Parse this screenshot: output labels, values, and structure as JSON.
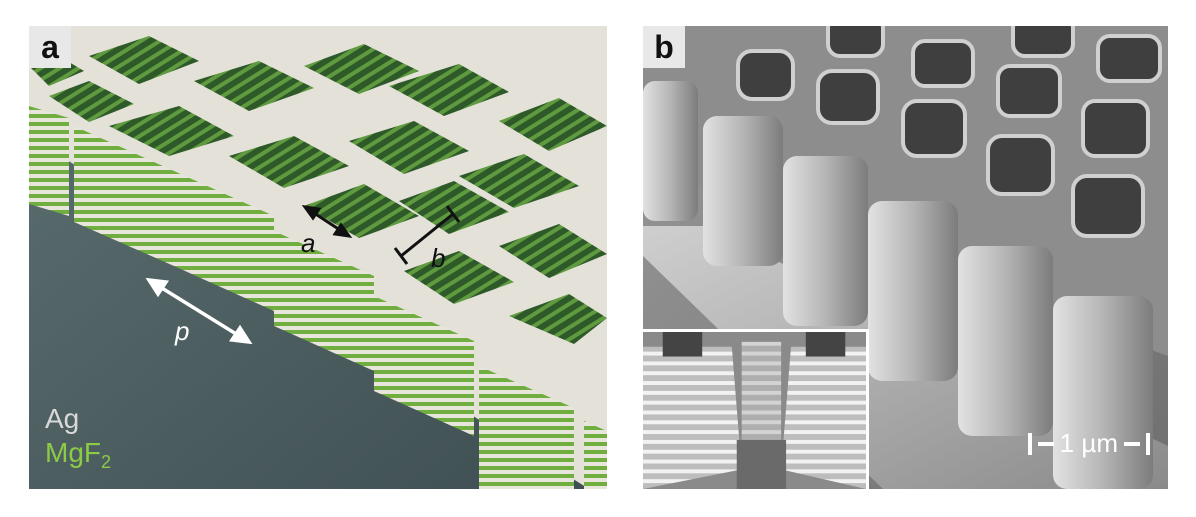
{
  "panel_a": {
    "letter": "a",
    "labels": {
      "a": "a",
      "b": "b",
      "p": "p"
    },
    "legend": {
      "silver": "Ag",
      "mgf_base": "MgF",
      "mgf_sub": "2"
    },
    "colors": {
      "silver": "#e6e3dc",
      "mgf2": "#7fbf4a",
      "substrate": "#4f6264",
      "hole": "#3d6b33"
    }
  },
  "panel_b": {
    "letter": "b",
    "scale_bar": "1 µm",
    "colors": {
      "sem_light": "#d6d6d6",
      "sem_mid": "#8c8c8c",
      "sem_dark": "#3a3a3a"
    }
  }
}
